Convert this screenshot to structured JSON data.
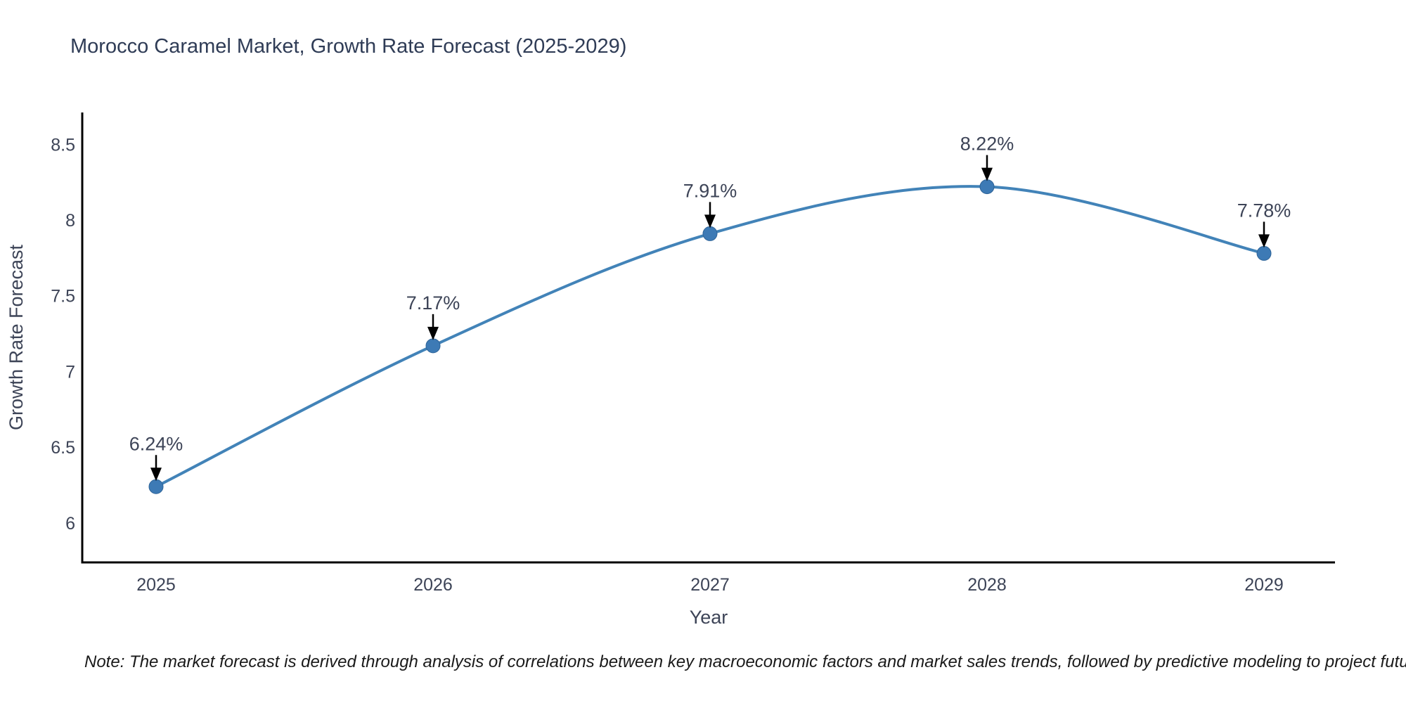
{
  "title": "Morocco Caramel Market, Growth Rate Forecast (2025-2029)",
  "note": "Note: The market forecast is derived through analysis of correlations between key macroeconomic factors and market sales trends, followed by predictive modeling to project future sales",
  "chart_data": {
    "type": "line",
    "title": "Morocco Caramel Market, Growth Rate Forecast (2025-2029)",
    "xlabel": "Year",
    "ylabel": "Growth Rate Forecast",
    "categories": [
      "2025",
      "2026",
      "2027",
      "2028",
      "2029"
    ],
    "values": [
      6.24,
      7.17,
      7.91,
      8.22,
      7.78
    ],
    "point_labels": [
      "6.24%",
      "7.17%",
      "7.91%",
      "8.22%",
      "7.78%"
    ],
    "ylim": [
      5.74,
      8.71
    ],
    "yticks": [
      6,
      6.5,
      7,
      7.5,
      8,
      8.5
    ],
    "grid": false,
    "legend": "none",
    "smooth": true,
    "annotation_style": "label-with-down-arrow"
  },
  "colors": {
    "background": "#ffffff",
    "title_text": "#2f3c56",
    "axis_text": "#3d4457",
    "axis_line": "#000000",
    "line": "#4283b8",
    "marker": "#3d7ab5",
    "marker_edge": "#2f6498",
    "annotation_text": "#3d4457",
    "annotation_arrow": "#000000",
    "note_text": "#1a1a1a"
  }
}
